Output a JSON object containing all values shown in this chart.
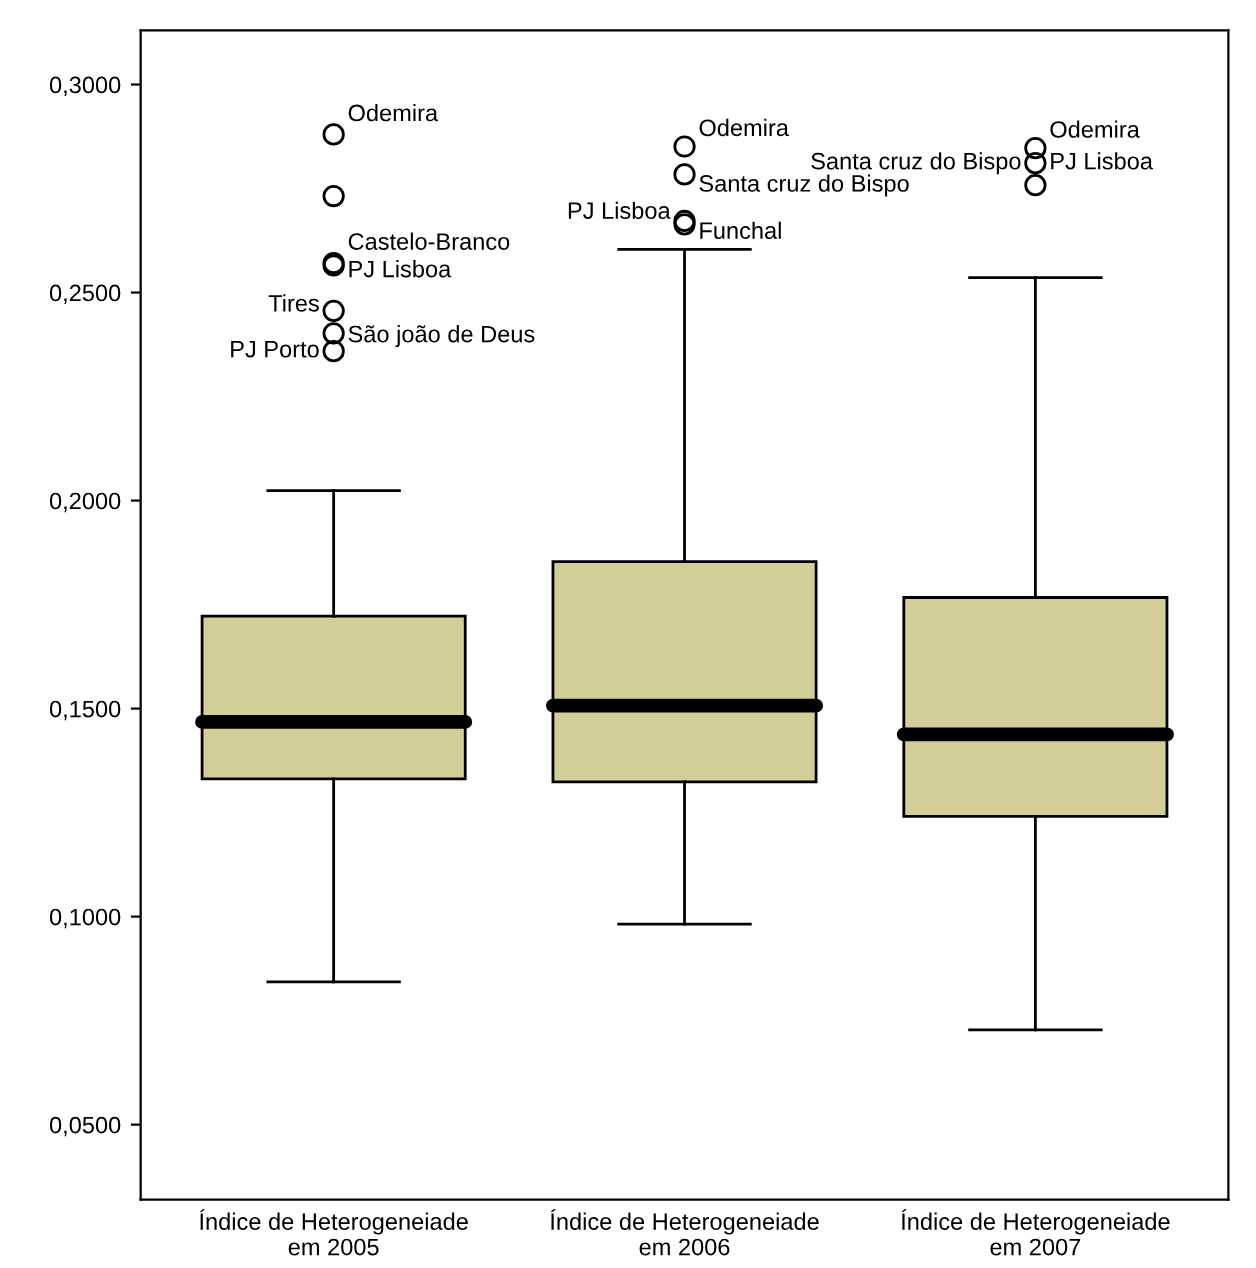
{
  "chart_data": {
    "type": "box",
    "categories": [
      "Índice de Heterogeneiade\nem 2005",
      "Índice de Heterogeneiade\nem 2006",
      "Índice de Heterogeneiade\nem 2007"
    ],
    "series": [
      {
        "color": "#d3ce98",
        "boxes": [
          {
            "low": 0.0843,
            "q1": 0.1331,
            "median": 0.1468,
            "q3": 0.1722,
            "high": 0.2024,
            "outliers": [
              0.288,
              0.2732,
              0.2571,
              0.2565,
              0.2456,
              0.2402,
              0.2359
            ]
          },
          {
            "low": 0.0982,
            "q1": 0.1324,
            "median": 0.1507,
            "q3": 0.1853,
            "high": 0.2604,
            "outliers": [
              0.2851,
              0.2784,
              0.2672,
              0.2664
            ]
          },
          {
            "low": 0.0728,
            "q1": 0.1241,
            "median": 0.1438,
            "q3": 0.1767,
            "high": 0.2536,
            "outliers": [
              0.2847,
              0.2811,
              0.2758
            ]
          }
        ]
      }
    ],
    "ylim": [
      0.032,
      0.313
    ],
    "yticks": [
      {
        "value": 0.05,
        "label": "0,0500"
      },
      {
        "value": 0.1,
        "label": "0,1000"
      },
      {
        "value": 0.15,
        "label": "0,1500"
      },
      {
        "value": 0.2,
        "label": "0,2000"
      },
      {
        "value": 0.25,
        "label": "0,2500"
      },
      {
        "value": 0.3,
        "label": "0,3000"
      }
    ],
    "grid": false,
    "marker": "circle",
    "annotations": [
      "Odemira",
      "Castelo-Branco",
      "PJ Lisboa",
      "Tires",
      "São joão de Deus",
      "PJ Porto",
      "Odemira",
      "Santa cruz do Bispo",
      "PJ Lisboa",
      "Funchal",
      "Odemira",
      "PJ Lisboa",
      "Santa cruz do Bispo"
    ]
  }
}
